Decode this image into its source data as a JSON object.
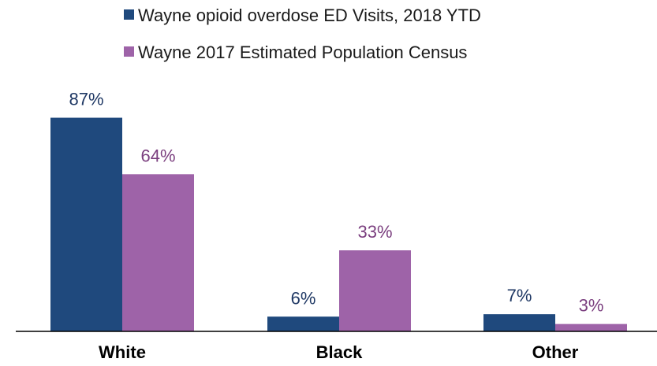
{
  "chart_data": {
    "type": "bar",
    "categories": [
      "White",
      "Black",
      "Other"
    ],
    "series": [
      {
        "name": "Wayne opioid overdose ED Visits, 2018 YTD",
        "values": [
          87,
          6,
          7
        ],
        "labels": [
          "87%",
          "6%",
          "7%"
        ],
        "color": "#1f497d"
      },
      {
        "name": "Wayne 2017 Estimated Population Census",
        "values": [
          64,
          33,
          3
        ],
        "labels": [
          "64%",
          "33%",
          "3%"
        ],
        "color": "#9e63a8"
      }
    ],
    "unit": "%",
    "ylim": [
      0,
      100
    ],
    "legend_position": "top-center",
    "grid": false,
    "colors": {
      "label_series_1": "#1f3864",
      "label_series_2": "#7b3f7f",
      "axis": "#000000"
    }
  }
}
